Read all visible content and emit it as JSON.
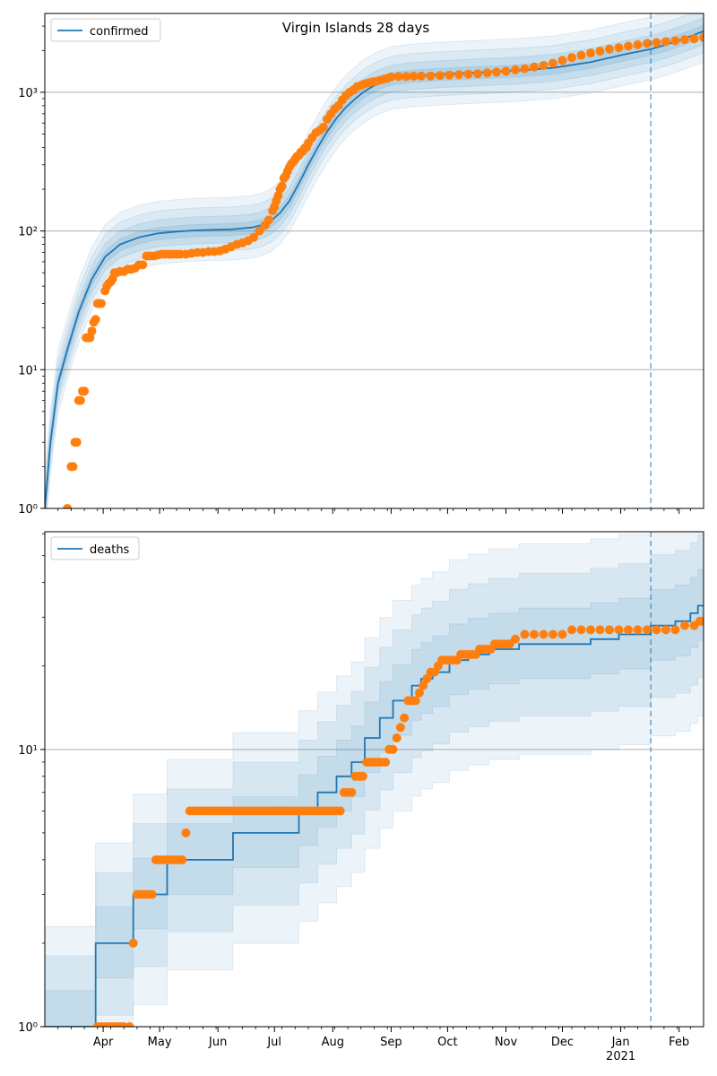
{
  "figure_title": "Virgin Islands 28 days",
  "colors": {
    "model": "#1f77b4",
    "observed": "#ff7f0e",
    "band": "#1f77b4",
    "grid": "#b0b0b0",
    "forecast_line": "#1f77b4"
  },
  "x_axis": {
    "month_ticks": [
      {
        "day": 31,
        "label": "Apr"
      },
      {
        "day": 61,
        "label": "May"
      },
      {
        "day": 92,
        "label": "Jun"
      },
      {
        "day": 122,
        "label": "Jul"
      },
      {
        "day": 153,
        "label": "Aug"
      },
      {
        "day": 184,
        "label": "Sep"
      },
      {
        "day": 214,
        "label": "Oct"
      },
      {
        "day": 245,
        "label": "Nov"
      },
      {
        "day": 275,
        "label": "Dec"
      },
      {
        "day": 306,
        "label": "Jan"
      },
      {
        "day": 337,
        "label": "Feb"
      }
    ],
    "year_label": "2021",
    "year_label_day": 306
  },
  "forecast_start_day": 322,
  "chart_data": [
    {
      "type": "line",
      "scale": "log",
      "x_unit": "days since 1 Mar 2020",
      "xlim": [
        0,
        350
      ],
      "ylim": [
        1,
        3700
      ],
      "y_ticks": [
        {
          "value": 1,
          "label": "10⁰"
        },
        {
          "value": 10,
          "label": "10¹"
        },
        {
          "value": 100,
          "label": "10²"
        },
        {
          "value": 1000,
          "label": "10³"
        }
      ],
      "grid": "horizontal",
      "legend": {
        "label": "confirmed",
        "placement": "top-left"
      },
      "model_series": {
        "name": "confirmed",
        "x": [
          0,
          3,
          7,
          12,
          18,
          25,
          32,
          40,
          50,
          60,
          70,
          80,
          90,
          100,
          110,
          115,
          120,
          125,
          130,
          135,
          140,
          145,
          150,
          155,
          160,
          165,
          170,
          175,
          180,
          185,
          195,
          210,
          230,
          250,
          270,
          290,
          310,
          322,
          330,
          340,
          350
        ],
        "y": [
          1,
          3,
          8,
          14,
          26,
          45,
          65,
          80,
          90,
          96,
          99,
          101,
          102,
          103,
          106,
          110,
          118,
          135,
          165,
          220,
          300,
          400,
          520,
          650,
          780,
          900,
          1020,
          1120,
          1200,
          1260,
          1310,
          1350,
          1390,
          1430,
          1500,
          1650,
          1900,
          2050,
          2200,
          2450,
          2750
        ]
      },
      "bands": [
        {
          "lower_factor": 0.9,
          "upper_factor": 1.1,
          "opacity": 0.12
        },
        {
          "lower_factor": 0.8,
          "upper_factor": 1.25,
          "opacity": 0.1
        },
        {
          "lower_factor": 0.7,
          "upper_factor": 1.45,
          "opacity": 0.09
        },
        {
          "lower_factor": 0.6,
          "upper_factor": 1.7,
          "opacity": 0.08
        }
      ],
      "observed_series": {
        "x": [
          12,
          14,
          15,
          16,
          17,
          18,
          19,
          20,
          21,
          22,
          23,
          24,
          25,
          26,
          27,
          28,
          29,
          30,
          32,
          33,
          34,
          35,
          36,
          37,
          38,
          40,
          42,
          44,
          46,
          48,
          50,
          52,
          54,
          56,
          58,
          60,
          62,
          64,
          66,
          68,
          70,
          72,
          75,
          78,
          81,
          84,
          87,
          90,
          93,
          96,
          99,
          102,
          105,
          108,
          111,
          114,
          117,
          119,
          121,
          122,
          123,
          124,
          125,
          126,
          127,
          128,
          129,
          130,
          131,
          132,
          133,
          134,
          135,
          136,
          137,
          138,
          139,
          140,
          142,
          144,
          146,
          148,
          150,
          152,
          154,
          156,
          158,
          160,
          162,
          164,
          166,
          168,
          170,
          172,
          174,
          176,
          178,
          180,
          182,
          184,
          188,
          192,
          196,
          200,
          205,
          210,
          215,
          220,
          225,
          230,
          235,
          240,
          245,
          250,
          255,
          260,
          265,
          270,
          275,
          280,
          285,
          290,
          295,
          300,
          305,
          310,
          315,
          320,
          325,
          330,
          335,
          340,
          345,
          350
        ],
        "y": [
          1,
          2,
          2,
          3,
          3,
          6,
          6,
          7,
          7,
          17,
          17,
          17,
          19,
          22,
          23,
          30,
          30,
          30,
          37,
          40,
          42,
          43,
          45,
          50,
          50,
          51,
          51,
          53,
          53,
          54,
          57,
          57,
          66,
          66,
          66,
          67,
          68,
          68,
          68,
          68,
          68,
          68,
          68,
          69,
          70,
          70,
          71,
          71,
          72,
          74,
          77,
          80,
          82,
          85,
          90,
          100,
          110,
          120,
          140,
          150,
          165,
          180,
          200,
          210,
          240,
          250,
          270,
          290,
          305,
          315,
          330,
          345,
          350,
          370,
          375,
          395,
          400,
          430,
          470,
          510,
          530,
          560,
          640,
          700,
          760,
          800,
          880,
          950,
          1000,
          1040,
          1100,
          1120,
          1150,
          1170,
          1190,
          1200,
          1220,
          1240,
          1260,
          1290,
          1300,
          1300,
          1305,
          1310,
          1310,
          1320,
          1330,
          1340,
          1350,
          1360,
          1380,
          1400,
          1420,
          1450,
          1480,
          1520,
          1560,
          1620,
          1700,
          1780,
          1850,
          1920,
          1980,
          2050,
          2100,
          2150,
          2200,
          2250,
          2280,
          2320,
          2350,
          2400,
          2430,
          2480
        ]
      }
    },
    {
      "type": "line",
      "scale": "log",
      "x_unit": "days since 1 Mar 2020",
      "xlim": [
        0,
        350
      ],
      "ylim": [
        1,
        61
      ],
      "y_ticks": [
        {
          "value": 1,
          "label": "10⁰"
        },
        {
          "value": 10,
          "label": "10¹"
        }
      ],
      "grid": "horizontal",
      "legend": {
        "label": "deaths",
        "placement": "top-left"
      },
      "model_series": {
        "name": "deaths",
        "x": [
          0,
          27,
          27,
          47,
          47,
          65,
          65,
          100,
          100,
          135,
          135,
          145,
          145,
          155,
          155,
          163,
          163,
          170,
          170,
          178,
          178,
          185,
          185,
          195,
          195,
          200,
          200,
          206,
          206,
          215,
          215,
          225,
          225,
          236,
          236,
          252,
          252,
          290,
          290,
          305,
          305,
          322,
          322,
          335,
          335,
          343,
          343,
          347,
          347,
          350
        ],
        "y": [
          1,
          1,
          2,
          2,
          3,
          3,
          4,
          4,
          5,
          5,
          6,
          6,
          7,
          7,
          8,
          8,
          9,
          9,
          11,
          11,
          13,
          13,
          15,
          15,
          17,
          17,
          18,
          18,
          19,
          19,
          21,
          21,
          22,
          22,
          23,
          23,
          24,
          24,
          25,
          25,
          26,
          26,
          28,
          28,
          29,
          29,
          31,
          31,
          33,
          33
        ]
      },
      "bands": [
        {
          "lower_factor": 0.75,
          "upper_factor": 1.35,
          "opacity": 0.1
        },
        {
          "lower_factor": 0.55,
          "upper_factor": 1.8,
          "opacity": 0.1
        },
        {
          "lower_factor": 0.4,
          "upper_factor": 2.3,
          "opacity": 0.08
        }
      ],
      "observed_series": {
        "x": [
          28,
          30,
          32,
          34,
          36,
          38,
          40,
          42,
          45,
          47,
          49,
          51,
          53,
          55,
          57,
          59,
          61,
          63,
          65,
          67,
          69,
          71,
          73,
          75,
          77,
          79,
          81,
          83,
          85,
          87,
          89,
          91,
          93,
          95,
          97,
          99,
          101,
          103,
          105,
          107,
          109,
          111,
          113,
          115,
          117,
          119,
          121,
          123,
          125,
          127,
          129,
          131,
          133,
          135,
          137,
          139,
          141,
          143,
          145,
          147,
          149,
          151,
          153,
          155,
          157,
          159,
          161,
          163,
          165,
          167,
          169,
          171,
          173,
          175,
          177,
          179,
          181,
          183,
          185,
          187,
          189,
          191,
          193,
          195,
          197,
          199,
          201,
          203,
          205,
          207,
          209,
          211,
          213,
          215,
          217,
          219,
          221,
          223,
          225,
          227,
          229,
          231,
          233,
          235,
          237,
          239,
          241,
          243,
          245,
          247,
          250,
          255,
          260,
          265,
          270,
          275,
          280,
          285,
          290,
          295,
          300,
          305,
          310,
          315,
          320,
          325,
          330,
          335,
          340,
          345,
          348,
          350
        ],
        "y": [
          1,
          1,
          1,
          1,
          1,
          1,
          1,
          1,
          1,
          2,
          3,
          3,
          3,
          3,
          3,
          4,
          4,
          4,
          4,
          4,
          4,
          4,
          4,
          5,
          6,
          6,
          6,
          6,
          6,
          6,
          6,
          6,
          6,
          6,
          6,
          6,
          6,
          6,
          6,
          6,
          6,
          6,
          6,
          6,
          6,
          6,
          6,
          6,
          6,
          6,
          6,
          6,
          6,
          6,
          6,
          6,
          6,
          6,
          6,
          6,
          6,
          6,
          6,
          6,
          6,
          7,
          7,
          7,
          8,
          8,
          8,
          9,
          9,
          9,
          9,
          9,
          9,
          10,
          10,
          11,
          12,
          13,
          15,
          15,
          15,
          16,
          17,
          18,
          19,
          19,
          20,
          21,
          21,
          21,
          21,
          21,
          22,
          22,
          22,
          22,
          22,
          23,
          23,
          23,
          23,
          24,
          24,
          24,
          24,
          24,
          25,
          26,
          26,
          26,
          26,
          26,
          27,
          27,
          27,
          27,
          27,
          27,
          27,
          27,
          27,
          27,
          27,
          27,
          28,
          28,
          29,
          29
        ]
      }
    }
  ]
}
